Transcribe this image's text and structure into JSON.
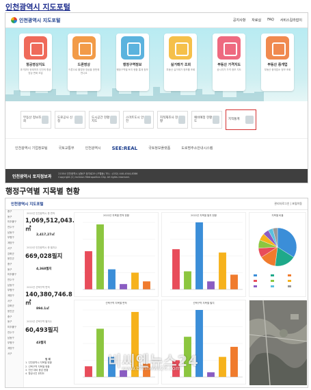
{
  "headings": {
    "portal": "인천광역시 지도포털",
    "dashboard": "행정구역별 지목별 현황"
  },
  "portal": {
    "logo": "인천광역시 지도포털",
    "nav": [
      "공지사항",
      "자료실",
      "FAQ",
      "서비스길라잡이"
    ],
    "cards": [
      {
        "title": "항공영상지도",
        "desc": "과거부터 현재까지 인천의 항공영상 변화 모습",
        "color": "#ef6a5a"
      },
      {
        "title": "드론영상",
        "desc": "드론으로 촬영한 영상을 한번에 만나요",
        "color": "#f29b48"
      },
      {
        "title": "행정구역정보",
        "desc": "행정구역별 토지 현황 통계 정보",
        "color": "#5bb3de"
      },
      {
        "title": "실거래가 조회",
        "desc": "부동산 실거래가 정보를 조회",
        "color": "#f5c04a"
      },
      {
        "title": "부동산 가격지도",
        "desc": "공시지가 가격 정보 지도",
        "color": "#ee6a80"
      },
      {
        "title": "부동산 중개업",
        "desc": "부동산 중개업소 정보 조회",
        "color": "#f08a4f"
      }
    ],
    "tiles": [
      "부동산 정보조회",
      "도로공사 신청",
      "도시공간 현황지도",
      "스마트도시 안전",
      "지적재조사 현황",
      "예비예정 현황도",
      "지적통계"
    ],
    "partners": [
      "인천광역시 기업정보팀",
      "국토교통부",
      "인천광역시",
      "SEE:REAL",
      "국토정보플랫폼",
      "도로명주소안내시스템"
    ],
    "footer_org": "인천광역시 토지정보과",
    "footer_addr": "21554 인천광역시 남동구 정각로29 (구월동) TEL : (032) 440-4544,8386",
    "footer_copy": "Copyright (C) Incheon Metropolitan City. All rights reserved."
  },
  "dashboard": {
    "title": "인천광역시 지도포털",
    "links": "관리자로그인 | 포털이동",
    "districts": [
      "중구",
      "동구",
      "미추홀구",
      "연수구",
      "남동구",
      "부평구",
      "계양구",
      "서구",
      "강화군",
      "옹진군",
      "중구",
      "동구",
      "미추홀구",
      "연수구",
      "남동구",
      "부평구",
      "계양구",
      "서구",
      "강화군",
      "옹진군",
      "중구",
      "동구",
      "미추홀구",
      "연수구",
      "남동구",
      "부평구",
      "계양구",
      "서구"
    ],
    "stats": [
      {
        "label": "2022년 인천광역시 총 면적",
        "value": "1,069,512,043.4㎡"
      },
      {
        "label": "",
        "value": "2,417,27㎡"
      },
      {
        "label": "2022년 인천광역시 총 필지수",
        "value": "669,028필지"
      },
      {
        "label": "",
        "value": "4,368필지"
      },
      {
        "label": "2022년 선택구역 면적",
        "value": "140,380,746.8㎡"
      },
      {
        "label": "",
        "value": "894.1㎡"
      },
      {
        "label": "2022년 선택구역 필지수",
        "value": "60,493필지"
      },
      {
        "label": "",
        "value": "43필지"
      }
    ],
    "summary_title": "범 례",
    "summary_lines": [
      "1. 인천광역시 지목별 현황",
      "2. 선택구역 지목별 현황",
      "3. 전년 대비 증감 현황",
      "4. 항공사진 위치도"
    ],
    "watermark": "비씨엔뉴스24",
    "watermark_url": "www.bcnnews24.com"
  },
  "colors": [
    "#e84c5a",
    "#8cc63f",
    "#3b8ed8",
    "#8a5cc2",
    "#f6b21c",
    "#f07b2d"
  ],
  "chart_data": [
    {
      "type": "bar",
      "title": "2022년 지목별 면적 현황",
      "values": [
        57,
        97,
        30,
        8,
        25,
        12
      ]
    },
    {
      "type": "bar",
      "title": "2022년 지목별 필지 현황",
      "values": [
        60,
        27,
        100,
        12,
        55,
        22
      ]
    },
    {
      "type": "pie",
      "title": "지목별 비율",
      "values": [
        34,
        18,
        14,
        8,
        7,
        6,
        5,
        4,
        4
      ]
    },
    {
      "type": "bar",
      "title": "선택구역 지목별 면적",
      "values": [
        16,
        72,
        30,
        10,
        97,
        20
      ]
    },
    {
      "type": "bar",
      "title": "선택구역 지목별 필지",
      "values": [
        25,
        60,
        100,
        7,
        30,
        45
      ]
    }
  ]
}
